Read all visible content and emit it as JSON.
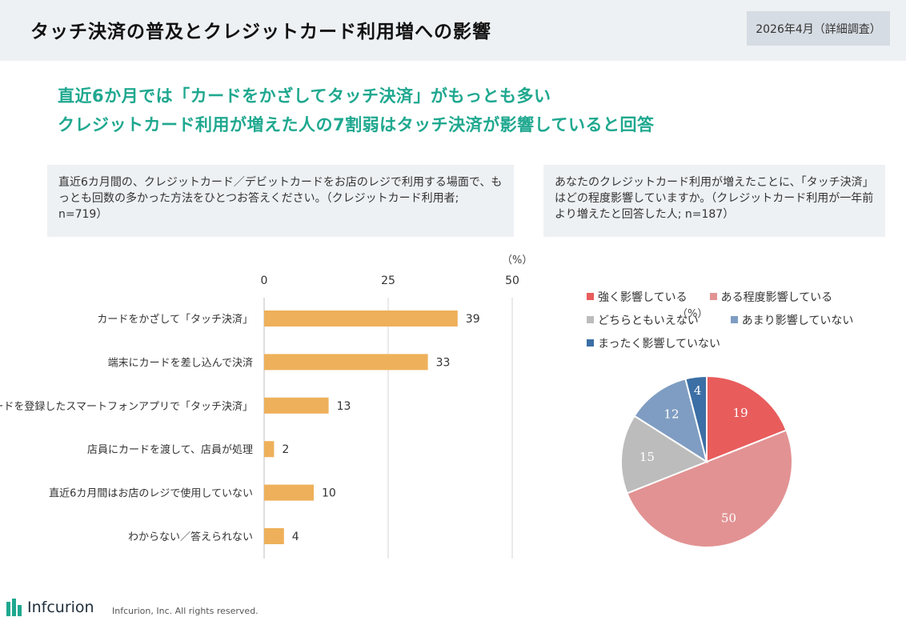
{
  "header": {
    "title": "タッチ決済の普及とクレジットカード利用増への影響",
    "date_badge": "2026年4月（詳細調査）"
  },
  "headline": {
    "line1": "直近6か月では「カードをかざしてタッチ決済」がもっとも多い",
    "line2": "クレジットカード利用が増えた人の7割弱はタッチ決済が影響していると回答"
  },
  "questions": {
    "left": "直近6カ月間の、クレジットカード／デビットカードをお店のレジで利用する場面で、もっとも回数の多かった方法をひとつお答えください。（クレジットカード利用者; n=719）",
    "right": "あなたのクレジットカード利用が増えたことに、「タッチ決済」はどの程度影響していますか。（クレジットカード利用が一年前より増えたと回答した人; n=187）"
  },
  "colors": {
    "bar": "#eeb05a",
    "strong": "#e85c5c",
    "some": "#e29293",
    "neutral": "#bcbcbc",
    "little": "#7f9dc2",
    "none": "#3b6fa5",
    "headline": "#1fa88f"
  },
  "chart_data": [
    {
      "type": "bar",
      "orientation": "horizontal",
      "unit": "（%）",
      "xlim": [
        0,
        50
      ],
      "ticks": [
        0,
        25,
        50
      ],
      "grid": true,
      "categories": [
        "カードをかざして「タッチ決済」",
        "端末にカードを差し込んで決済",
        "カードを登録したスマートフォンアプリで「タッチ決済」",
        "店員にカードを渡して、店員が処理",
        "直近6カ月間はお店のレジで使用していない",
        "わからない／答えられない"
      ],
      "values": [
        39,
        33,
        13,
        2,
        10,
        4
      ]
    },
    {
      "type": "pie",
      "unit": "（%）",
      "legend_position": "top",
      "labels": [
        "強く影響している",
        "ある程度影響している",
        "どちらともいえない",
        "あまり影響していない",
        "まったく影響していない"
      ],
      "values": [
        19,
        50,
        15,
        12,
        4
      ]
    }
  ],
  "footer": {
    "logo_text": "Infcurion",
    "copyright": "Infcurion, Inc.  All rights reserved."
  }
}
